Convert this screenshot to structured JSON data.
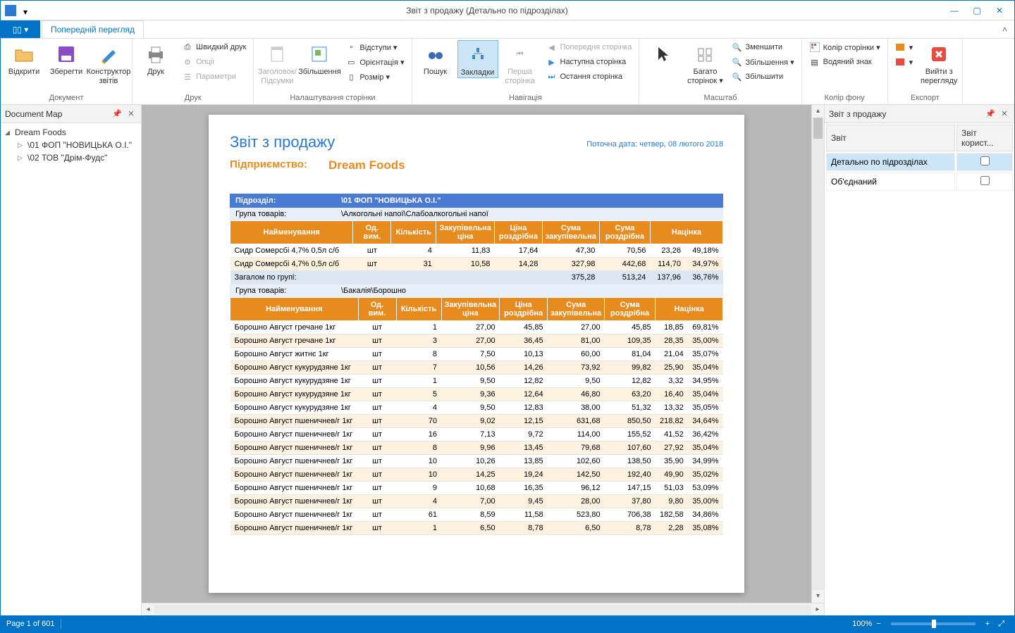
{
  "window": {
    "title": "Звіт з продажу (Детально по підрозділах)"
  },
  "tabs": {
    "file_glyph": "▯▯ ▾",
    "preview": "Попередній перегляд"
  },
  "ribbon": {
    "document": {
      "open": "Відкрити",
      "save": "Зберегти",
      "designer": "Конструктор звітів",
      "label": "Документ"
    },
    "print": {
      "print": "Друк",
      "quick": "Швидкий друк",
      "options": "Опції",
      "params": "Параметри",
      "label": "Друк"
    },
    "pagesetup": {
      "headerfooter": "Заголовок/Підсумки",
      "scale": "Збільшення",
      "margins": "Відступи ▾",
      "orient": "Орієнтація ▾",
      "size": "Розмір ▾",
      "label": "Налаштування сторінки"
    },
    "nav": {
      "find": "Пошук",
      "bookmarks": "Закладки",
      "first": "Перша сторінка",
      "prev": "Попередня сторінка",
      "next": "Наступна сторінка",
      "last": "Остання сторінка",
      "label": "Навігація"
    },
    "zoom": {
      "pointer": "",
      "many": "Багато сторінок ▾",
      "out": "Зменшити",
      "in": "Збільшення ▾",
      "in2": "Збільшити",
      "label": "Масштаб"
    },
    "bg": {
      "color": "Колір сторінки ▾",
      "watermark": "Водяний знак",
      "label": "Колір фону"
    },
    "export": {
      "to": "",
      "close": "Вийти з перегляду",
      "label": "Експорт"
    }
  },
  "docmap": {
    "title": "Document Map",
    "root": "Dream Foods",
    "children": [
      "\\01 ФОП \"НОВИЦЬКА О.І.\"",
      "\\02 ТОВ \"Дрім-Фудс\""
    ]
  },
  "report": {
    "title": "Звіт з продажу",
    "date": "Поточна дата: четвер, 08 лютого 2018",
    "enterprise_label": "Підприємство:",
    "enterprise": "Dream Foods",
    "section_label": "Підрозділ:",
    "section_value": "\\01 ФОП \"НОВИЦЬКА О.І.\"",
    "group_label": "Група товарів:",
    "headers": [
      "Найменування",
      "Од. вим.",
      "Кількість",
      "Закупівельна ціна",
      "Ціна роздрібна",
      "Сума закупівельна",
      "Сума роздрібна",
      "Націнка",
      ""
    ],
    "groups": [
      {
        "name": "\\Алкогольні напої\\Слабоалкогольні напої",
        "rows": [
          [
            "Сидр Сомерсбі 4,7% 0,5л с/б",
            "шт",
            "4",
            "11,83",
            "17,64",
            "47,30",
            "70,56",
            "23,26",
            "49,18%"
          ],
          [
            "Сидр Сомерсбі 4,7% 0,5л с/б",
            "шт",
            "31",
            "10,58",
            "14,28",
            "327,98",
            "442,68",
            "114,70",
            "34,97%"
          ]
        ],
        "total": [
          "Загалом по групі:",
          "",
          "",
          "",
          "",
          "375,28",
          "513,24",
          "137,96",
          "36,76%"
        ]
      },
      {
        "name": "\\Бакалія\\Борошно",
        "rows": [
          [
            "Борошно Август гречане 1кг",
            "шт",
            "1",
            "27,00",
            "45,85",
            "27,00",
            "45,85",
            "18,85",
            "69,81%"
          ],
          [
            "Борошно Август гречане 1кг",
            "шт",
            "3",
            "27,00",
            "36,45",
            "81,00",
            "109,35",
            "28,35",
            "35,00%"
          ],
          [
            "Борошно Август житнє 1кг",
            "шт",
            "8",
            "7,50",
            "10,13",
            "60,00",
            "81,04",
            "21,04",
            "35,07%"
          ],
          [
            "Борошно Август кукурудзяне 1кг",
            "шт",
            "7",
            "10,56",
            "14,26",
            "73,92",
            "99,82",
            "25,90",
            "35,04%"
          ],
          [
            "Борошно Август кукурудзяне 1кг",
            "шт",
            "1",
            "9,50",
            "12,82",
            "9,50",
            "12,82",
            "3,32",
            "34,95%"
          ],
          [
            "Борошно Август кукурудзяне 1кг",
            "шт",
            "5",
            "9,36",
            "12,64",
            "46,80",
            "63,20",
            "16,40",
            "35,04%"
          ],
          [
            "Борошно Август кукурудзяне 1кг",
            "шт",
            "4",
            "9,50",
            "12,83",
            "38,00",
            "51,32",
            "13,32",
            "35,05%"
          ],
          [
            "Борошно Август пшеничнев/г 1кг",
            "шт",
            "70",
            "9,02",
            "12,15",
            "631,68",
            "850,50",
            "218,82",
            "34,64%"
          ],
          [
            "Борошно Август пшеничнев/г 1кг",
            "шт",
            "16",
            "7,13",
            "9,72",
            "114,00",
            "155,52",
            "41,52",
            "36,42%"
          ],
          [
            "Борошно Август пшеничнев/г 1кг",
            "шт",
            "8",
            "9,96",
            "13,45",
            "79,68",
            "107,60",
            "27,92",
            "35,04%"
          ],
          [
            "Борошно Август пшеничнев/г 1кг",
            "шт",
            "10",
            "10,26",
            "13,85",
            "102,60",
            "138,50",
            "35,90",
            "34,99%"
          ],
          [
            "Борошно Август пшеничнев/г 1кг",
            "шт",
            "10",
            "14,25",
            "19,24",
            "142,50",
            "192,40",
            "49,90",
            "35,02%"
          ],
          [
            "Борошно Август пшеничнев/г 1кг",
            "шт",
            "9",
            "10,68",
            "16,35",
            "96,12",
            "147,15",
            "51,03",
            "53,09%"
          ],
          [
            "Борошно Август пшеничнев/г 1кг",
            "шт",
            "4",
            "7,00",
            "9,45",
            "28,00",
            "37,80",
            "9,80",
            "35,00%"
          ],
          [
            "Борошно Август пшеничнев/г 1кг",
            "шт",
            "61",
            "8,59",
            "11,58",
            "523,80",
            "706,38",
            "182,58",
            "34,86%"
          ],
          [
            "Борошно Август пшеничнев/г 1кг",
            "шт",
            "1",
            "6,50",
            "8,78",
            "6,50",
            "8,78",
            "2,28",
            "35,08%"
          ]
        ]
      }
    ]
  },
  "rightpanel": {
    "title": "Звіт з продажу",
    "cols": [
      "Звіт",
      "Звіт корист..."
    ],
    "rows": [
      "Детально по підрозділах",
      "Об'єднаний"
    ]
  },
  "status": {
    "page": "Page 1 of 601",
    "zoom": "100%"
  },
  "colors": {
    "accent": "#0173c7",
    "ribbon_sel": "#cce6f7",
    "orange": "#e78b1e",
    "blue_header": "#4a7bd4",
    "alt_row": "#fdf1e0",
    "total_row": "#dce7f5"
  }
}
